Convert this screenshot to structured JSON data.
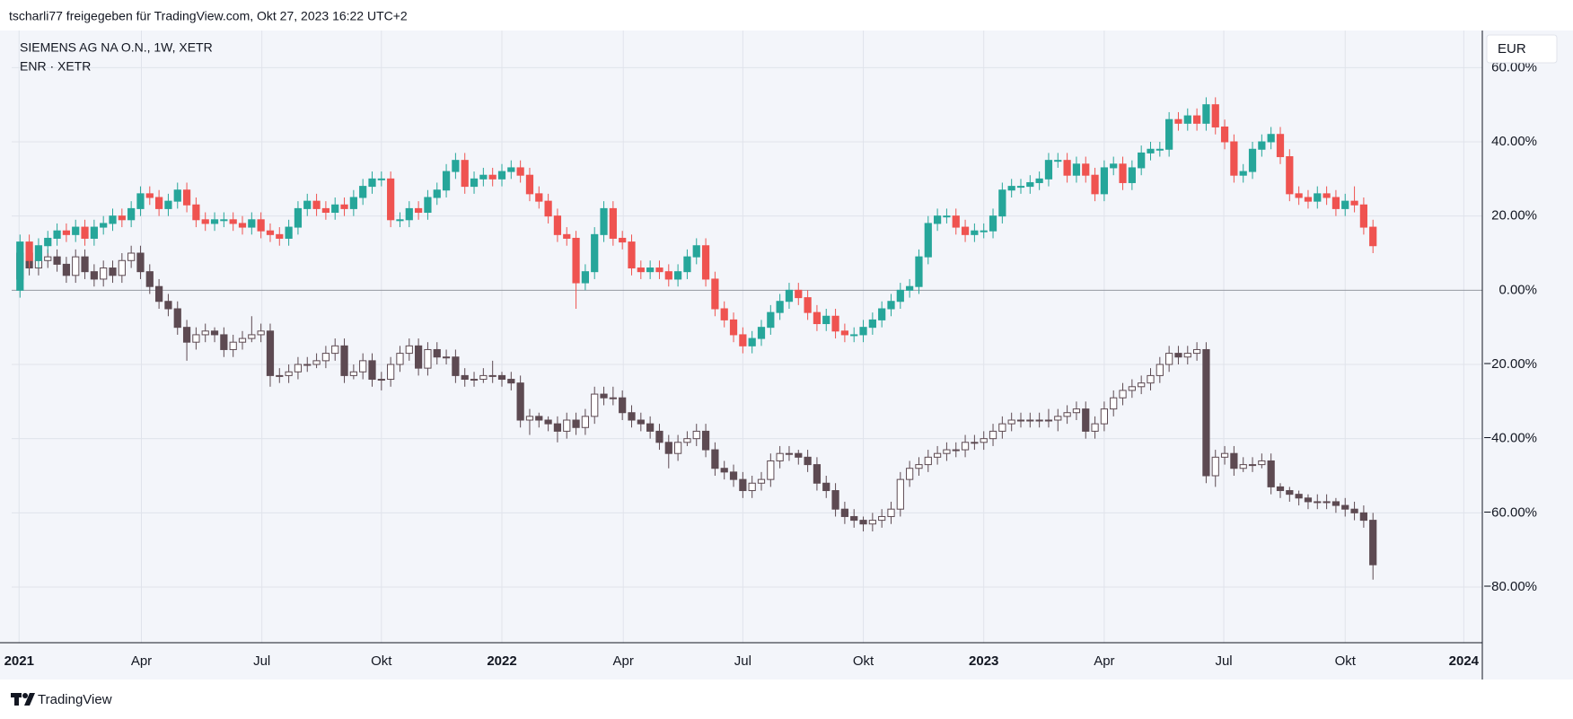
{
  "header": "tscharli77 freigegeben für TradingView.com, Okt 27, 2023 16:22 UTC+2",
  "footer": "TradingView",
  "chart_data": {
    "type": "candlestick",
    "currency": "EUR",
    "xlim": [
      -0.9,
      157.8
    ],
    "xticks": [
      {
        "value": -0.1,
        "label": "2021"
      },
      {
        "value": 13.1,
        "label": "Apr"
      },
      {
        "value": 26.1,
        "label": "Jul"
      },
      {
        "value": 39,
        "label": "Okt"
      },
      {
        "value": 52,
        "label": "2022"
      },
      {
        "value": 65.1,
        "label": "Apr"
      },
      {
        "value": 78,
        "label": "Jul"
      },
      {
        "value": 91,
        "label": "Okt"
      },
      {
        "value": 104,
        "label": "2023"
      },
      {
        "value": 117,
        "label": "Apr"
      },
      {
        "value": 129.9,
        "label": "Jul"
      },
      {
        "value": 143,
        "label": "Okt"
      },
      {
        "value": 155.8,
        "label": "2024"
      }
    ],
    "ylim": [
      -95,
      70
    ],
    "yticks": [
      {
        "value": 60,
        "label": "60.00%"
      },
      {
        "value": 40,
        "label": "40.00%"
      },
      {
        "value": 20,
        "label": "20.00%"
      },
      {
        "value": 0,
        "label": "0.00%"
      },
      {
        "value": -20,
        "label": "−20.00%"
      },
      {
        "value": -40,
        "label": "−40.00%"
      },
      {
        "value": -60,
        "label": "−60.00%"
      },
      {
        "value": -80,
        "label": "−80.00%"
      }
    ],
    "grid": true,
    "zero_line_color": "#9598a1",
    "series": [
      {
        "name": "ENR · XETR",
        "up_color": "#ffffff",
        "down_color": "#5d4a52",
        "border_color": "#5d4a52",
        "open": [
          3,
          10,
          6,
          8,
          9,
          7,
          4,
          9,
          5,
          3,
          6,
          4,
          8,
          10,
          5,
          1,
          -3,
          -5,
          -10,
          -14,
          -12,
          -11,
          -12,
          -16,
          -14,
          -13,
          -12,
          -11,
          -23,
          -23,
          -22,
          -20,
          -20,
          -19,
          -17,
          -15,
          -23,
          -22,
          -19,
          -24,
          -24,
          -20,
          -17,
          -15,
          -21,
          -16,
          -18,
          -18,
          -23,
          -24,
          -24,
          -23,
          -23,
          -24,
          -25,
          -35,
          -34,
          -35,
          -36,
          -38,
          -35,
          -37,
          -34,
          -28,
          -29,
          -29,
          -33,
          -35,
          -36,
          -38,
          -41,
          -44,
          -41,
          -40,
          -38,
          -43,
          -48,
          -49,
          -51,
          -54,
          -52,
          -51,
          -46,
          -44,
          -44,
          -45,
          -47,
          -52,
          -54,
          -59,
          -61,
          -62,
          -63,
          -62,
          -61,
          -59,
          -51,
          -48,
          -47,
          -45,
          -44,
          -43,
          -43,
          -41,
          -41,
          -40,
          -38,
          -36,
          -35,
          -35,
          -35,
          -35,
          -35,
          -34,
          -33,
          -32,
          -38,
          -36,
          -32,
          -29,
          -27,
          -26,
          -25,
          -23,
          -20,
          -17,
          -18,
          -17,
          -16,
          -50,
          -45,
          -44,
          -48,
          -47,
          -47,
          -46,
          -53,
          -54,
          -55,
          -56,
          -57,
          -57,
          -57,
          -58,
          -59,
          -60,
          -62
        ],
        "high": [
          12,
          12,
          10,
          11,
          11,
          9,
          11,
          11,
          7,
          8,
          8,
          10,
          12,
          12,
          7,
          3,
          -1,
          -3,
          -8,
          -10,
          -9,
          -10,
          -10,
          -12,
          -11,
          -7,
          -9,
          -9,
          -21,
          -20,
          -18,
          -18,
          -17,
          -15,
          -13,
          -13,
          -20,
          -17,
          -17,
          -22,
          -18,
          -15,
          -13,
          -13,
          -14,
          -14,
          -16,
          -16,
          -21,
          -22,
          -21,
          -19,
          -22,
          -22,
          -23,
          -32,
          -33,
          -34,
          -34,
          -33,
          -33,
          -32,
          -26,
          -26,
          -26,
          -27,
          -31,
          -33,
          -34,
          -36,
          -39,
          -39,
          -38,
          -36,
          -36,
          -41,
          -46,
          -47,
          -49,
          -50,
          -49,
          -44,
          -42,
          -42,
          -43,
          -43,
          -45,
          -50,
          -52,
          -57,
          -59,
          -61,
          -60,
          -59,
          -57,
          -49,
          -46,
          -45,
          -43,
          -42,
          -41,
          -41,
          -39,
          -39,
          -38,
          -36,
          -34,
          -33,
          -33,
          -33,
          -33,
          -32,
          -32,
          -31,
          -30,
          -30,
          -34,
          -30,
          -27,
          -25,
          -24,
          -23,
          -21,
          -18,
          -15,
          -15,
          -15,
          -14,
          -14,
          -43,
          -42,
          -42,
          -45,
          -45,
          -44,
          -44,
          -52,
          -53,
          -54,
          -55,
          -55,
          -55,
          -56,
          -56,
          -57,
          -58,
          -60
        ],
        "low": [
          1,
          4,
          4,
          6,
          5,
          2,
          2,
          3,
          1,
          1,
          2,
          2,
          6,
          3,
          -1,
          -5,
          -7,
          -12,
          -19,
          -16,
          -14,
          -14,
          -18,
          -18,
          -16,
          -14,
          -14,
          -26,
          -25,
          -25,
          -24,
          -22,
          -21,
          -21,
          -19,
          -25,
          -24,
          -24,
          -26,
          -27,
          -26,
          -22,
          -19,
          -23,
          -23,
          -20,
          -20,
          -25,
          -26,
          -26,
          -25,
          -25,
          -26,
          -27,
          -37,
          -39,
          -37,
          -38,
          -41,
          -40,
          -39,
          -39,
          -36,
          -31,
          -31,
          -35,
          -37,
          -38,
          -40,
          -43,
          -48,
          -46,
          -42,
          -42,
          -45,
          -50,
          -51,
          -53,
          -56,
          -56,
          -54,
          -53,
          -48,
          -46,
          -47,
          -49,
          -54,
          -56,
          -61,
          -63,
          -64,
          -65,
          -65,
          -64,
          -63,
          -61,
          -53,
          -50,
          -49,
          -47,
          -46,
          -45,
          -45,
          -43,
          -43,
          -42,
          -40,
          -38,
          -37,
          -37,
          -37,
          -37,
          -38,
          -36,
          -35,
          -40,
          -40,
          -38,
          -34,
          -31,
          -29,
          -28,
          -27,
          -25,
          -22,
          -20,
          -20,
          -19,
          -52,
          -53,
          -47,
          -50,
          -49,
          -49,
          -48,
          -55,
          -56,
          -57,
          -58,
          -59,
          -59,
          -59,
          -60,
          -61,
          -62,
          -64,
          -78
        ],
        "close": [
          10,
          6,
          8,
          9,
          7,
          4,
          9,
          5,
          3,
          6,
          4,
          8,
          10,
          5,
          1,
          -3,
          -5,
          -10,
          -14,
          -12,
          -11,
          -12,
          -16,
          -14,
          -13,
          -12,
          -11,
          -23,
          -23,
          -22,
          -20,
          -20,
          -19,
          -17,
          -15,
          -23,
          -22,
          -19,
          -24,
          -24,
          -20,
          -17,
          -15,
          -21,
          -16,
          -18,
          -18,
          -23,
          -24,
          -24,
          -23,
          -23,
          -24,
          -25,
          -35,
          -34,
          -35,
          -36,
          -38,
          -35,
          -37,
          -34,
          -28,
          -29,
          -29,
          -33,
          -35,
          -36,
          -38,
          -41,
          -44,
          -41,
          -40,
          -38,
          -43,
          -48,
          -49,
          -51,
          -54,
          -52,
          -51,
          -46,
          -44,
          -44,
          -45,
          -47,
          -52,
          -54,
          -59,
          -61,
          -62,
          -63,
          -62,
          -61,
          -59,
          -51,
          -48,
          -47,
          -45,
          -44,
          -43,
          -43,
          -41,
          -41,
          -40,
          -38,
          -36,
          -35,
          -35,
          -35,
          -35,
          -35,
          -34,
          -33,
          -32,
          -38,
          -36,
          -32,
          -29,
          -27,
          -26,
          -25,
          -23,
          -20,
          -17,
          -18,
          -17,
          -16,
          -50,
          -45,
          -44,
          -48,
          -47,
          -47,
          -46,
          -53,
          -54,
          -55,
          -56,
          -57,
          -57,
          -57,
          -58,
          -59,
          -60,
          -62,
          -74
        ]
      },
      {
        "name": "SIEMENS AG NA O.N., 1W, XETR",
        "up_color": "#26a69a",
        "down_color": "#ef5350",
        "open": [
          0,
          13,
          8,
          12,
          14,
          16,
          15,
          17,
          14,
          17,
          18,
          20,
          19,
          22,
          26,
          25,
          22,
          24,
          27,
          23,
          19,
          18,
          19,
          19,
          18,
          17,
          19,
          16,
          15,
          14,
          17,
          22,
          24,
          22,
          21,
          23,
          22,
          25,
          28,
          30,
          30,
          19,
          19,
          22,
          21,
          25,
          27,
          32,
          35,
          28,
          30,
          31,
          30,
          32,
          33,
          31,
          26,
          24,
          20,
          15,
          14,
          2,
          5,
          15,
          22,
          14,
          13,
          6,
          5,
          6,
          5,
          3,
          5,
          9,
          12,
          3,
          -5,
          -8,
          -12,
          -15,
          -13,
          -10,
          -6,
          -3,
          0,
          -2,
          -6,
          -9,
          -7,
          -11,
          -12,
          -12,
          -10,
          -8,
          -5,
          -3,
          0,
          1,
          9,
          18,
          20,
          20,
          17,
          15,
          16,
          16,
          20,
          27,
          28,
          28,
          29,
          30,
          35,
          35,
          31,
          34,
          31,
          26,
          33,
          34,
          29,
          33,
          37,
          38,
          38,
          46,
          45,
          47,
          45,
          50,
          44,
          40,
          31,
          32,
          38,
          40,
          42,
          36,
          26,
          25,
          24,
          26,
          25,
          22,
          24,
          23,
          17
        ],
        "high": [
          15,
          15,
          14,
          16,
          18,
          18,
          19,
          19,
          19,
          20,
          22,
          22,
          24,
          28,
          28,
          27,
          26,
          29,
          29,
          25,
          21,
          21,
          21,
          21,
          20,
          21,
          21,
          18,
          17,
          19,
          24,
          26,
          26,
          24,
          25,
          25,
          27,
          30,
          32,
          32,
          32,
          21,
          24,
          24,
          27,
          29,
          34,
          37,
          37,
          32,
          33,
          33,
          34,
          35,
          35,
          33,
          28,
          26,
          22,
          17,
          16,
          7,
          17,
          24,
          24,
          16,
          15,
          8,
          8,
          8,
          7,
          7,
          11,
          14,
          14,
          5,
          -3,
          -6,
          -10,
          -11,
          -8,
          -4,
          -1,
          2,
          2,
          0,
          -4,
          -5,
          -5,
          -9,
          -10,
          -8,
          -6,
          -3,
          -1,
          2,
          3,
          11,
          20,
          22,
          22,
          22,
          19,
          18,
          18,
          22,
          29,
          30,
          30,
          31,
          32,
          37,
          37,
          37,
          36,
          36,
          33,
          35,
          36,
          36,
          35,
          39,
          40,
          40,
          48,
          48,
          49,
          49,
          52,
          52,
          46,
          42,
          34,
          40,
          42,
          44,
          44,
          38,
          28,
          27,
          28,
          28,
          27,
          26,
          28,
          25,
          19
        ],
        "low": [
          -2,
          6,
          6,
          10,
          12,
          13,
          13,
          12,
          12,
          15,
          16,
          17,
          17,
          20,
          23,
          20,
          20,
          22,
          21,
          17,
          16,
          16,
          17,
          16,
          15,
          15,
          14,
          13,
          12,
          12,
          15,
          20,
          20,
          19,
          19,
          20,
          20,
          23,
          26,
          28,
          17,
          17,
          17,
          19,
          19,
          23,
          25,
          30,
          26,
          26,
          28,
          28,
          28,
          30,
          29,
          24,
          22,
          18,
          13,
          12,
          -5,
          0,
          3,
          13,
          12,
          11,
          4,
          3,
          3,
          3,
          1,
          1,
          3,
          7,
          1,
          -7,
          -10,
          -14,
          -17,
          -17,
          -15,
          -12,
          -8,
          -5,
          -4,
          -8,
          -11,
          -11,
          -13,
          -14,
          -14,
          -14,
          -12,
          -10,
          -7,
          -5,
          -2,
          -1,
          7,
          16,
          18,
          15,
          13,
          13,
          14,
          14,
          18,
          25,
          26,
          26,
          27,
          28,
          33,
          29,
          29,
          29,
          24,
          24,
          31,
          27,
          27,
          31,
          35,
          36,
          36,
          43,
          43,
          43,
          43,
          42,
          38,
          29,
          29,
          30,
          36,
          38,
          34,
          24,
          23,
          22,
          22,
          23,
          20,
          20,
          21,
          15,
          10
        ],
        "close": [
          13,
          8,
          12,
          14,
          16,
          15,
          17,
          14,
          17,
          18,
          20,
          19,
          22,
          26,
          25,
          22,
          24,
          27,
          23,
          19,
          18,
          19,
          19,
          18,
          17,
          19,
          16,
          15,
          14,
          17,
          22,
          24,
          22,
          21,
          23,
          22,
          25,
          28,
          30,
          30,
          19,
          19,
          22,
          21,
          25,
          27,
          32,
          35,
          28,
          30,
          31,
          30,
          32,
          33,
          31,
          26,
          24,
          20,
          15,
          14,
          2,
          5,
          15,
          22,
          14,
          13,
          6,
          5,
          6,
          5,
          3,
          5,
          9,
          12,
          3,
          -5,
          -8,
          -12,
          -15,
          -13,
          -10,
          -6,
          -3,
          0,
          -2,
          -6,
          -9,
          -7,
          -11,
          -12,
          -12,
          -10,
          -8,
          -5,
          -3,
          0,
          1,
          9,
          18,
          20,
          20,
          17,
          15,
          16,
          16,
          20,
          27,
          28,
          28,
          29,
          30,
          35,
          35,
          31,
          34,
          31,
          26,
          33,
          34,
          29,
          33,
          37,
          38,
          38,
          46,
          45,
          47,
          45,
          50,
          44,
          40,
          31,
          32,
          38,
          40,
          42,
          36,
          26,
          25,
          24,
          26,
          25,
          22,
          24,
          23,
          17,
          12
        ]
      }
    ]
  }
}
